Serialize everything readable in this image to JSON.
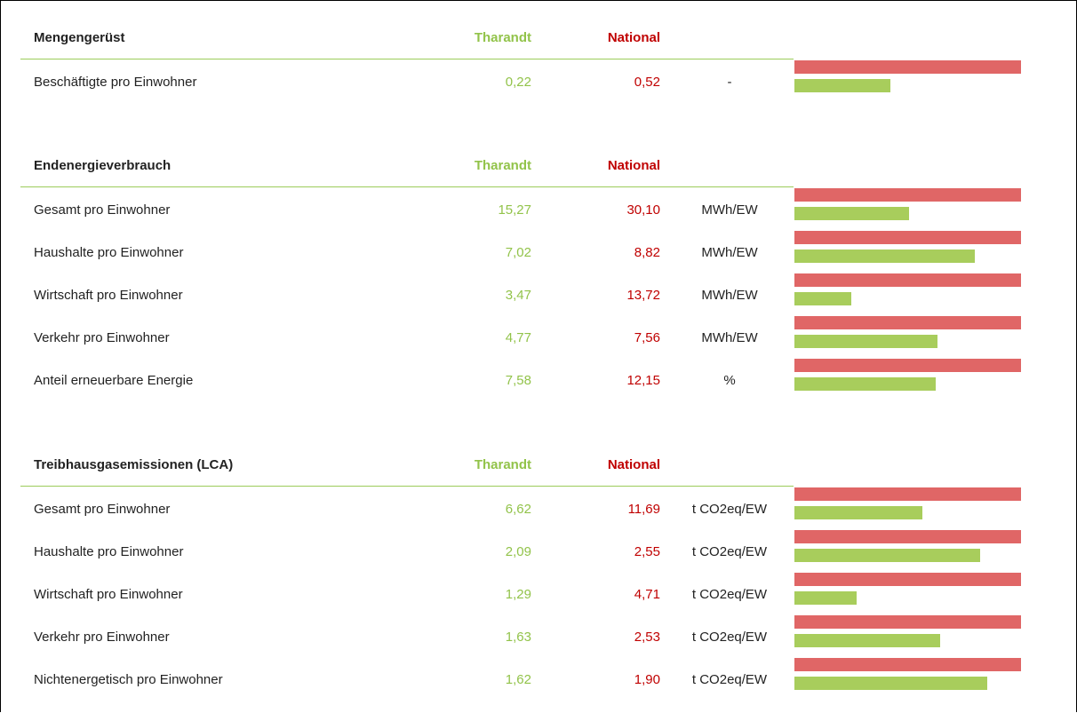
{
  "sections": [
    {
      "title": "Mengengerüst",
      "col1": "Tharandt",
      "col2": "National",
      "rows": [
        {
          "label": "Beschäftigte pro Einwohner",
          "tharandt": "0,22",
          "national": "0,52",
          "unit": "-"
        }
      ]
    },
    {
      "title": "Endenergieverbrauch",
      "col1": "Tharandt",
      "col2": "National",
      "rows": [
        {
          "label": "Gesamt pro Einwohner",
          "tharandt": "15,27",
          "national": "30,10",
          "unit": "MWh/EW"
        },
        {
          "label": "Haushalte pro Einwohner",
          "tharandt": "7,02",
          "national": "8,82",
          "unit": "MWh/EW"
        },
        {
          "label": "Wirtschaft pro Einwohner",
          "tharandt": "3,47",
          "national": "13,72",
          "unit": "MWh/EW"
        },
        {
          "label": "Verkehr pro Einwohner",
          "tharandt": "4,77",
          "national": "7,56",
          "unit": "MWh/EW"
        },
        {
          "label": "Anteil erneuerbare Energie",
          "tharandt": "7,58",
          "national": "12,15",
          "unit": "%"
        }
      ]
    },
    {
      "title": "Treibhausgasemissionen (LCA)",
      "col1": "Tharandt",
      "col2": "National",
      "rows": [
        {
          "label": "Gesamt pro Einwohner",
          "tharandt": "6,62",
          "national": "11,69",
          "unit": "t CO2eq/EW"
        },
        {
          "label": "Haushalte pro Einwohner",
          "tharandt": "2,09",
          "national": "2,55",
          "unit": "t CO2eq/EW"
        },
        {
          "label": "Wirtschaft pro Einwohner",
          "tharandt": "1,29",
          "national": "4,71",
          "unit": "t CO2eq/EW"
        },
        {
          "label": "Verkehr pro Einwohner",
          "tharandt": "1,63",
          "national": "2,53",
          "unit": "t CO2eq/EW"
        },
        {
          "label": "Nichtenergetisch pro Einwohner",
          "tharandt": "1,62",
          "national": "1,90",
          "unit": "t CO2eq/EW"
        }
      ]
    }
  ]
}
